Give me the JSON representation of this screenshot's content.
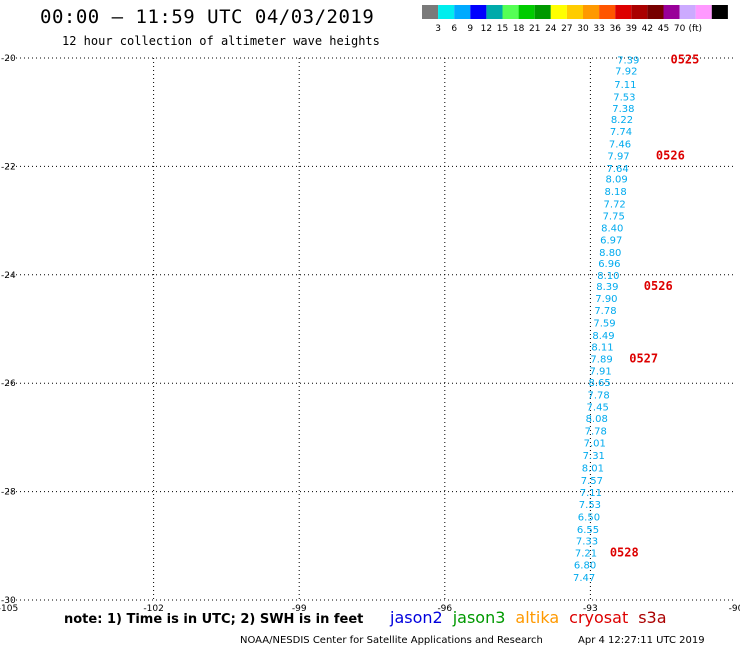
{
  "header": {
    "title": "00:00 — 11:59 UTC 04/03/2019",
    "subtitle": "12 hour collection of altimeter wave heights"
  },
  "scale": {
    "colors": [
      "#7a7a7a",
      "#00eeee",
      "#00aaff",
      "#0000ff",
      "#00aaaa",
      "#55ff55",
      "#00cc00",
      "#009900",
      "#ffff00",
      "#ffcc00",
      "#ff9900",
      "#ff5500",
      "#dd0000",
      "#aa0000",
      "#770000",
      "#990099",
      "#ccaaff",
      "#ff99ff",
      "#000000"
    ],
    "labels": [
      "3",
      "6",
      "9",
      "12",
      "15",
      "18",
      "21",
      "24",
      "27",
      "30",
      "33",
      "36",
      "39",
      "42",
      "45",
      "70"
    ],
    "unit": "(ft)"
  },
  "chart_data": {
    "type": "scatter",
    "xlim": [
      -105,
      -90
    ],
    "ylim": [
      -30,
      -20
    ],
    "x_ticks": [
      -105,
      -102,
      -99,
      -96,
      -93,
      -90
    ],
    "x_tick_labels": [
      "-105",
      "-102",
      "-99",
      "-96",
      "-93",
      "-90"
    ],
    "y_ticks": [
      -20,
      -22,
      -24,
      -26,
      -28,
      -30
    ],
    "y_tick_labels": [
      "-20",
      "-22",
      "-24",
      "-26",
      "-28",
      "-30"
    ],
    "grid": true,
    "point_color": "#00aaee",
    "points": [
      {
        "x": -92.22,
        "y": -20.1,
        "label": "7.39"
      },
      {
        "x": -92.26,
        "y": -20.3,
        "label": "7.92"
      },
      {
        "x": -92.28,
        "y": -20.55,
        "label": "7.11"
      },
      {
        "x": -92.3,
        "y": -20.78,
        "label": "7.53"
      },
      {
        "x": -92.32,
        "y": -21.0,
        "label": "7.38"
      },
      {
        "x": -92.35,
        "y": -21.2,
        "label": "8.22"
      },
      {
        "x": -92.37,
        "y": -21.42,
        "label": "7.74"
      },
      {
        "x": -92.39,
        "y": -21.65,
        "label": "7.46"
      },
      {
        "x": -92.42,
        "y": -21.87,
        "label": "7.97"
      },
      {
        "x": -92.44,
        "y": -22.1,
        "label": "7.64"
      },
      {
        "x": -92.46,
        "y": -22.3,
        "label": "8.09"
      },
      {
        "x": -92.48,
        "y": -22.53,
        "label": "8.18"
      },
      {
        "x": -92.5,
        "y": -22.76,
        "label": "7.72"
      },
      {
        "x": -92.52,
        "y": -22.98,
        "label": "7.75"
      },
      {
        "x": -92.55,
        "y": -23.2,
        "label": "8.40"
      },
      {
        "x": -92.57,
        "y": -23.42,
        "label": "6.97"
      },
      {
        "x": -92.59,
        "y": -23.65,
        "label": "8.80"
      },
      {
        "x": -92.61,
        "y": -23.86,
        "label": "6.96"
      },
      {
        "x": -92.63,
        "y": -24.08,
        "label": "8.10"
      },
      {
        "x": -92.65,
        "y": -24.28,
        "label": "8.39"
      },
      {
        "x": -92.67,
        "y": -24.5,
        "label": "7.90"
      },
      {
        "x": -92.69,
        "y": -24.72,
        "label": "7.78"
      },
      {
        "x": -92.71,
        "y": -24.95,
        "label": "7.59"
      },
      {
        "x": -92.73,
        "y": -25.18,
        "label": "8.49"
      },
      {
        "x": -92.75,
        "y": -25.4,
        "label": "8.11"
      },
      {
        "x": -92.77,
        "y": -25.62,
        "label": "7.89"
      },
      {
        "x": -92.79,
        "y": -25.84,
        "label": "7.91"
      },
      {
        "x": -92.81,
        "y": -26.05,
        "label": "8.65"
      },
      {
        "x": -92.83,
        "y": -26.28,
        "label": "7.78"
      },
      {
        "x": -92.85,
        "y": -26.5,
        "label": "7.45"
      },
      {
        "x": -92.87,
        "y": -26.72,
        "label": "8.08"
      },
      {
        "x": -92.89,
        "y": -26.95,
        "label": "7.78"
      },
      {
        "x": -92.91,
        "y": -27.17,
        "label": "7.01"
      },
      {
        "x": -92.93,
        "y": -27.4,
        "label": "7.31"
      },
      {
        "x": -92.95,
        "y": -27.63,
        "label": "8.01"
      },
      {
        "x": -92.97,
        "y": -27.86,
        "label": "7.57"
      },
      {
        "x": -92.99,
        "y": -28.08,
        "label": "7.11"
      },
      {
        "x": -93.01,
        "y": -28.3,
        "label": "7.53"
      },
      {
        "x": -93.03,
        "y": -28.53,
        "label": "6.50"
      },
      {
        "x": -93.05,
        "y": -28.76,
        "label": "6.55"
      },
      {
        "x": -93.07,
        "y": -28.98,
        "label": "7.33"
      },
      {
        "x": -93.09,
        "y": -29.2,
        "label": "7.21"
      },
      {
        "x": -93.11,
        "y": -29.42,
        "label": "6.80"
      },
      {
        "x": -93.13,
        "y": -29.65,
        "label": "7.47"
      }
    ],
    "time_color": "#dd0000",
    "time_labels": [
      {
        "x": -91.35,
        "y": -20.1,
        "label": "0525"
      },
      {
        "x": -91.65,
        "y": -21.87,
        "label": "0526"
      },
      {
        "x": -91.9,
        "y": -24.28,
        "label": "0526"
      },
      {
        "x": -92.2,
        "y": -25.62,
        "label": "0527"
      },
      {
        "x": -92.6,
        "y": -29.2,
        "label": "0528"
      }
    ]
  },
  "footer": {
    "note": "note: 1) Time is in UTC; 2) SWH is in feet",
    "satellites": [
      {
        "name": "jason2",
        "color": "#0000dd"
      },
      {
        "name": "jason3",
        "color": "#009900"
      },
      {
        "name": "altika",
        "color": "#ff9900"
      },
      {
        "name": "cryosat",
        "color": "#dd0000"
      },
      {
        "name": "s3a",
        "color": "#aa0000"
      }
    ],
    "credit": "NOAA/NESDIS Center for Satellite Applications and Research",
    "timestamp": "Apr  4 12:27:11 UTC 2019"
  }
}
